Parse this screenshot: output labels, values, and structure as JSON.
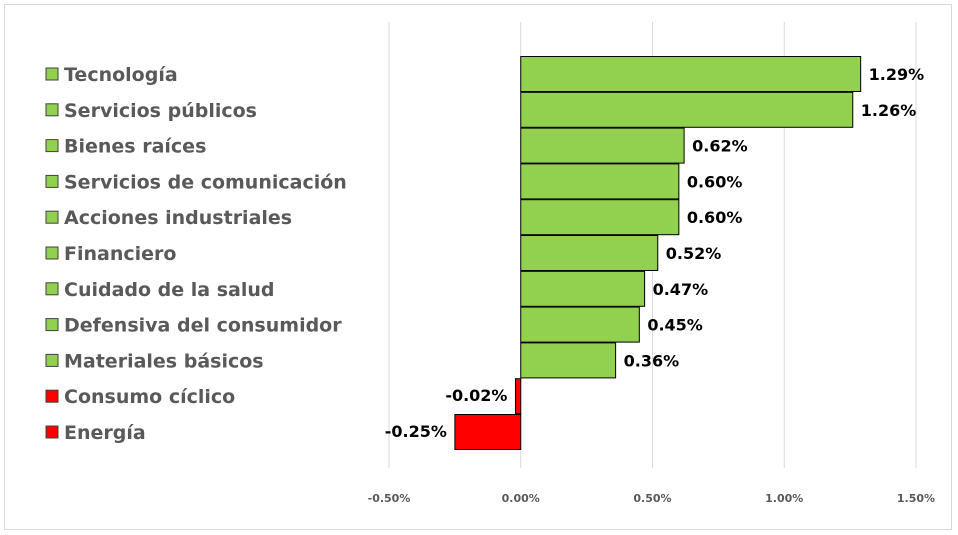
{
  "chart_data": {
    "type": "bar",
    "orientation": "horizontal",
    "categories": [
      "Tecnología",
      "Servicios públicos",
      "Bienes raíces",
      "Servicios de comunicación",
      "Acciones industriales",
      "Financiero",
      "Cuidado de la salud",
      "Defensiva del consumidor",
      "Materiales básicos",
      "Consumo cíclico",
      "Energía"
    ],
    "values": [
      1.29,
      1.26,
      0.62,
      0.6,
      0.6,
      0.52,
      0.47,
      0.45,
      0.36,
      -0.02,
      -0.25
    ],
    "data_labels": [
      "1.29%",
      "1.26%",
      "0.62%",
      "0.60%",
      "0.60%",
      "0.52%",
      "0.47%",
      "0.45%",
      "0.36%",
      "-0.02%",
      "-0.25%"
    ],
    "x_ticks": [
      -0.5,
      0.0,
      0.5,
      1.0,
      1.5
    ],
    "x_tick_labels": [
      "-0.50%",
      "0.00%",
      "0.50%",
      "1.00%",
      "1.50%"
    ],
    "xlim": [
      -0.5,
      1.5
    ],
    "unit": "%",
    "grid": "vertical",
    "legend": "left",
    "colors": {
      "positive": "#92d050",
      "negative": "#ff0000",
      "bar_edge": "#000000",
      "grid": "#d9d9d9",
      "frame": "#d9d9d9"
    }
  }
}
